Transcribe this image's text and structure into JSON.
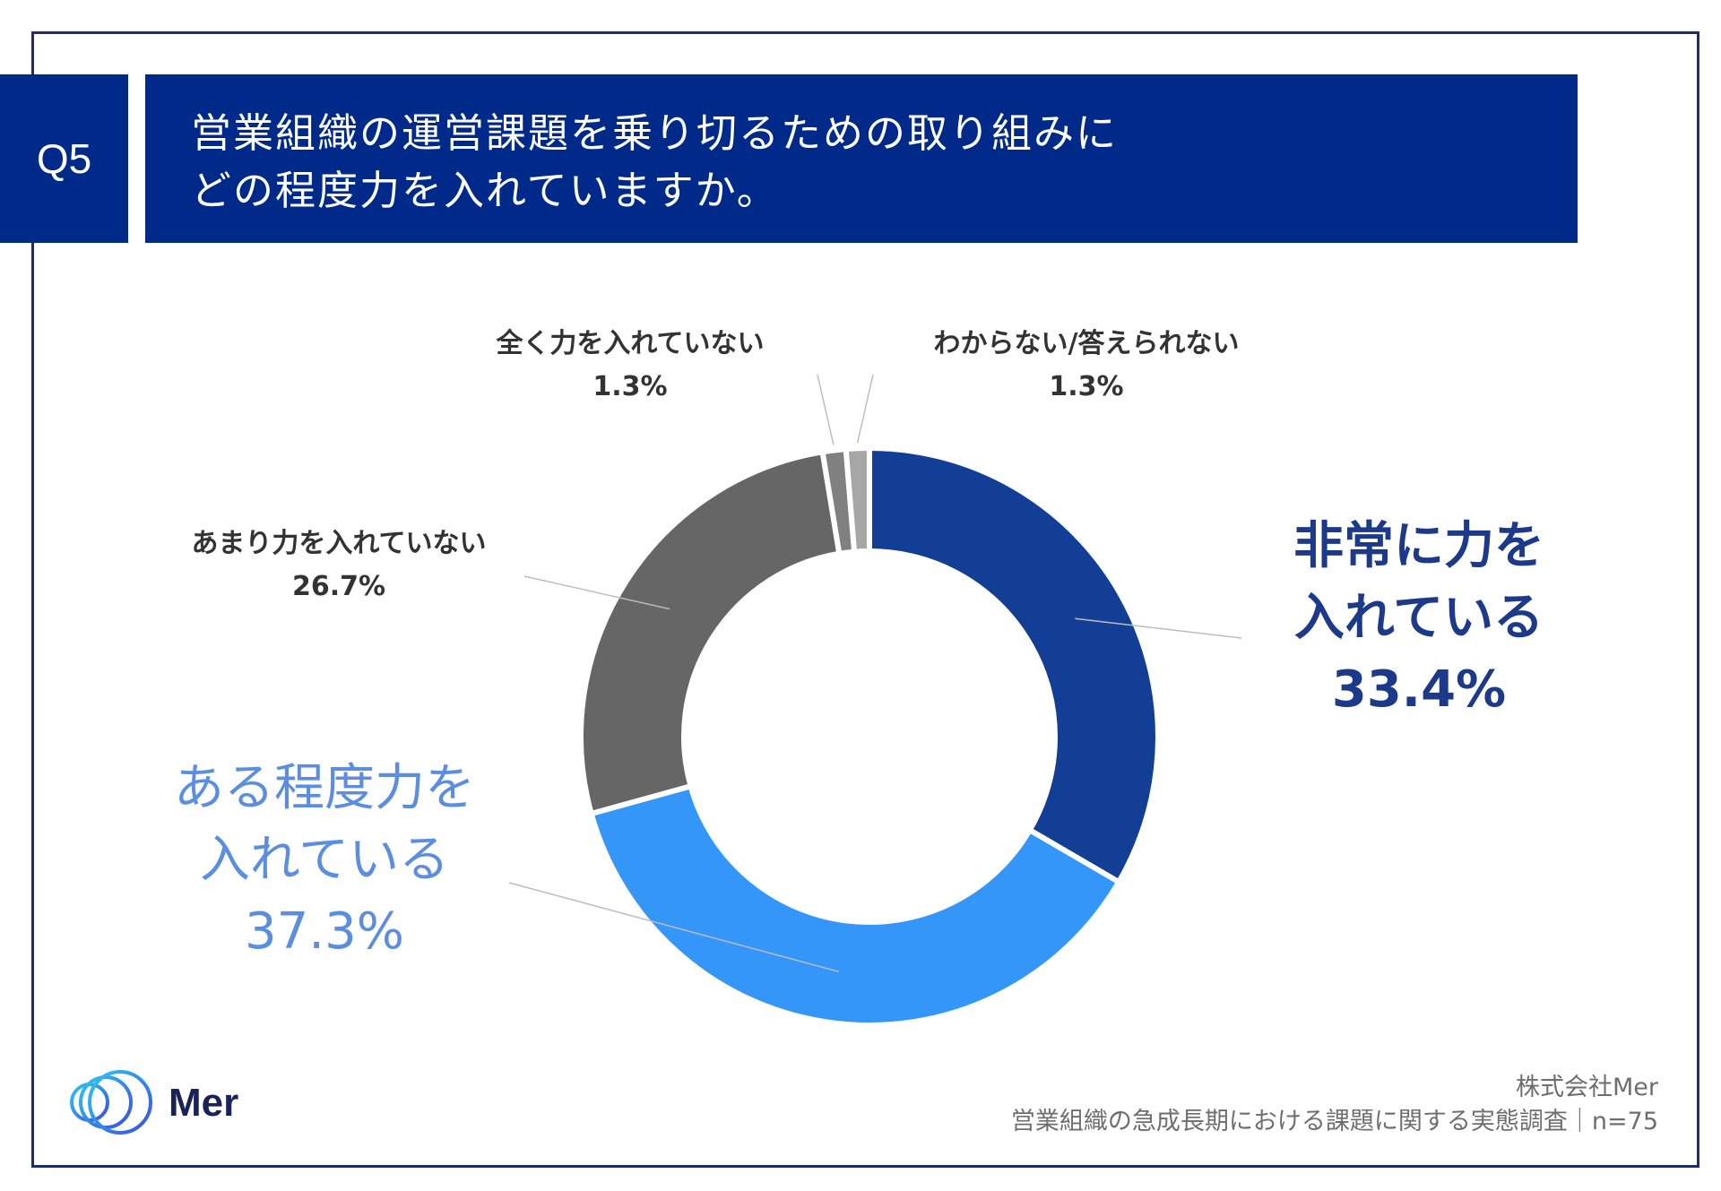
{
  "question": {
    "number": "Q5",
    "title_line1": "営業組織の運営課題を乗り切るための取り組みに",
    "title_line2": "どの程度力を入れていますか。"
  },
  "chart_data": {
    "type": "pie",
    "donut": true,
    "title": "営業組織の運営課題を乗り切るための取り組みにどの程度力を入れていますか。",
    "categories": [
      "非常に力を入れている",
      "ある程度力を入れている",
      "あまり力を入れていない",
      "全く力を入れていない",
      "わからない/答えられない"
    ],
    "values": [
      33.4,
      37.3,
      26.7,
      1.3,
      1.3
    ],
    "value_labels": [
      "33.4%",
      "37.3%",
      "26.7%",
      "1.3%",
      "1.3%"
    ],
    "label_lines": [
      [
        "非常に力を",
        "入れている"
      ],
      [
        "ある程度力を",
        "入れている"
      ],
      [
        "あまり力を入れていない"
      ],
      [
        "全く力を入れていない"
      ],
      [
        "わからない/答えられない"
      ]
    ],
    "colors": [
      "#133e96",
      "#3596fa",
      "#666666",
      "#808080",
      "#a6a6a6"
    ],
    "label_colors": [
      "#1d3a8a",
      "#5b8ee0",
      "#333333",
      "#333333",
      "#333333"
    ]
  },
  "logo": {
    "text": "Mer"
  },
  "footer": {
    "company": "株式会社Mer",
    "survey": "営業組織の急成長期における課題に関する実態調査｜n=75"
  }
}
